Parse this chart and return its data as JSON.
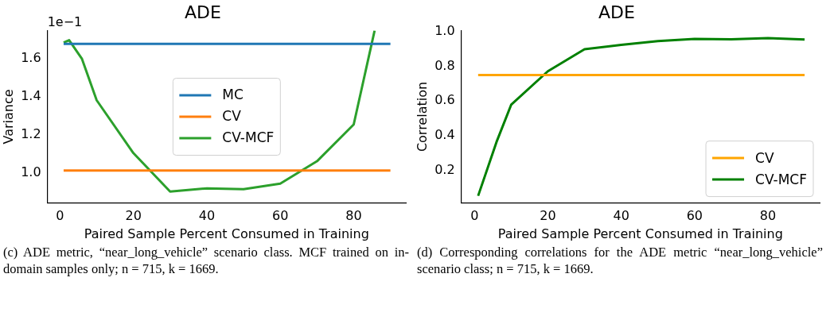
{
  "chart_data": [
    {
      "type": "line",
      "title": "ADE",
      "xlabel": "Paired Sample Percent Consumed in Training",
      "ylabel": "Variance",
      "xlim": [
        -3.4,
        94.2
      ],
      "xticks": [
        0,
        20,
        40,
        60,
        80
      ],
      "ylim": [
        0.84,
        1.75
      ],
      "yticks": [
        {
          "value": 1,
          "label": "1.0"
        },
        1.2,
        1.4,
        1.6
      ],
      "grid": false,
      "legend": "center",
      "series": [
        {
          "name": "MC",
          "color": "#1f77b4",
          "x": [
            1,
            90
          ],
          "values": [
            1.679,
            1.679
          ]
        },
        {
          "name": "CV",
          "color": "#ff7f0e",
          "x": [
            1,
            90
          ],
          "values": [
            1.011,
            1.011
          ]
        },
        {
          "name": "CV-MCF",
          "color": "#2ca02c",
          "x": [
            1,
            2.5,
            6,
            10,
            20,
            30,
            40,
            50,
            60,
            70,
            80,
            85.7
          ],
          "values": [
            1.686,
            1.699,
            1.6,
            1.382,
            1.103,
            0.9,
            0.917,
            0.913,
            0.942,
            1.06,
            1.254,
            1.75
          ]
        }
      ],
      "annotations": [
        "1e−1",
        "(c) ADE metric, “near_long_vehicle” scenario class. MCF trained on in-domain samples only; n = 715, k = 1669."
      ]
    },
    {
      "type": "line",
      "title": "ADE",
      "xlabel": "Paired Sample Percent Consumed in Training",
      "ylabel": "Correlation",
      "xlim": [
        -3.6,
        94.1
      ],
      "xticks": [
        0,
        20,
        40,
        60,
        80
      ],
      "ylim": [
        0.013,
        1.007
      ],
      "yticks": [
        0.2,
        0.4,
        0.6,
        0.8,
        {
          "value": 1,
          "label": "1.0"
        }
      ],
      "grid": false,
      "legend": "bottom right",
      "series": [
        {
          "name": "CV",
          "color": "#ffa500",
          "x": [
            1,
            90
          ],
          "values": [
            0.75,
            0.75
          ]
        },
        {
          "name": "CV-MCF",
          "color": "#008000",
          "x": [
            1,
            6,
            10,
            20,
            30,
            40,
            50,
            60,
            70,
            80,
            90
          ],
          "values": [
            0.054,
            0.364,
            0.579,
            0.772,
            0.899,
            0.924,
            0.946,
            0.959,
            0.956,
            0.963,
            0.955
          ]
        }
      ],
      "annotations": [
        "(d) Corresponding correlations for the ADE metric “near_long_vehicle” scenario class; n = 715, k = 1669."
      ]
    }
  ]
}
